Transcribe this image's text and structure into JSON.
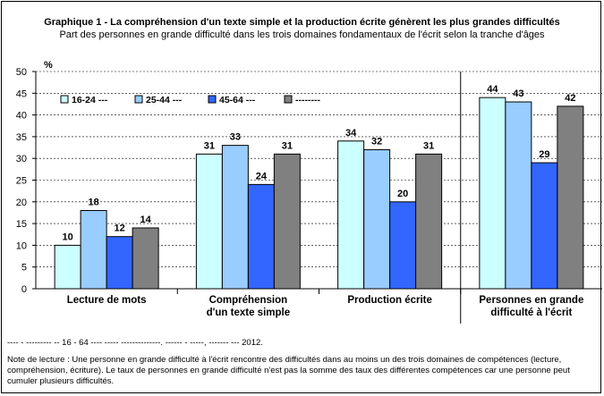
{
  "title": "Graphique 1 - La compréhension d'un texte simple et la production écrite génèrent les plus grandes difficultés",
  "subtitle": "Part des personnes en grande difficulté dans les trois domaines fondamentaux de l'écrit selon la tranche d'âges",
  "source": "---- - --------- -- 16 - 64 ---- ----- --------------.                    ------ - -----, ------- --- 2012.",
  "note": "Note de lecture : Une personne en grande difficulté à l'écrit rencontre des difficultés dans au moins un des trois domaines de compétences (lecture, compréhension, écriture). Le taux de personnes en grande difficulté n'est pas la somme des taux des différentes compétences car une personne peut cumuler plusieurs difficultés.",
  "chart_data": {
    "type": "bar",
    "title": "Graphique 1 - La compréhension d'un texte simple et la production écrite génèrent les plus grandes difficultés",
    "subtitle": "Part des personnes en grande difficulté dans les trois domaines fondamentaux de l'écrit selon la tranche d'âges",
    "ylabel": "%",
    "ylim": [
      0,
      50
    ],
    "yticks": [
      0,
      5,
      10,
      15,
      20,
      25,
      30,
      35,
      40,
      45,
      50
    ],
    "grid": "horizontal dashed",
    "legend_position": "top-left",
    "categories": [
      "Lecture de mots",
      "Compréhension\nd'un texte simple",
      "Production écrite",
      "Personnes en grande\ndifficulté à l'écrit"
    ],
    "series": [
      {
        "name": "16-24 ---",
        "color": "#ccffff",
        "values": [
          10,
          31,
          34,
          44
        ]
      },
      {
        "name": "25-44 ---",
        "color": "#99ccff",
        "values": [
          18,
          33,
          32,
          43
        ]
      },
      {
        "name": "45-64 ---",
        "color": "#3366ff",
        "values": [
          12,
          24,
          20,
          29
        ]
      },
      {
        "name": "--------",
        "color": "#808080",
        "values": [
          14,
          31,
          31,
          42
        ]
      }
    ]
  }
}
